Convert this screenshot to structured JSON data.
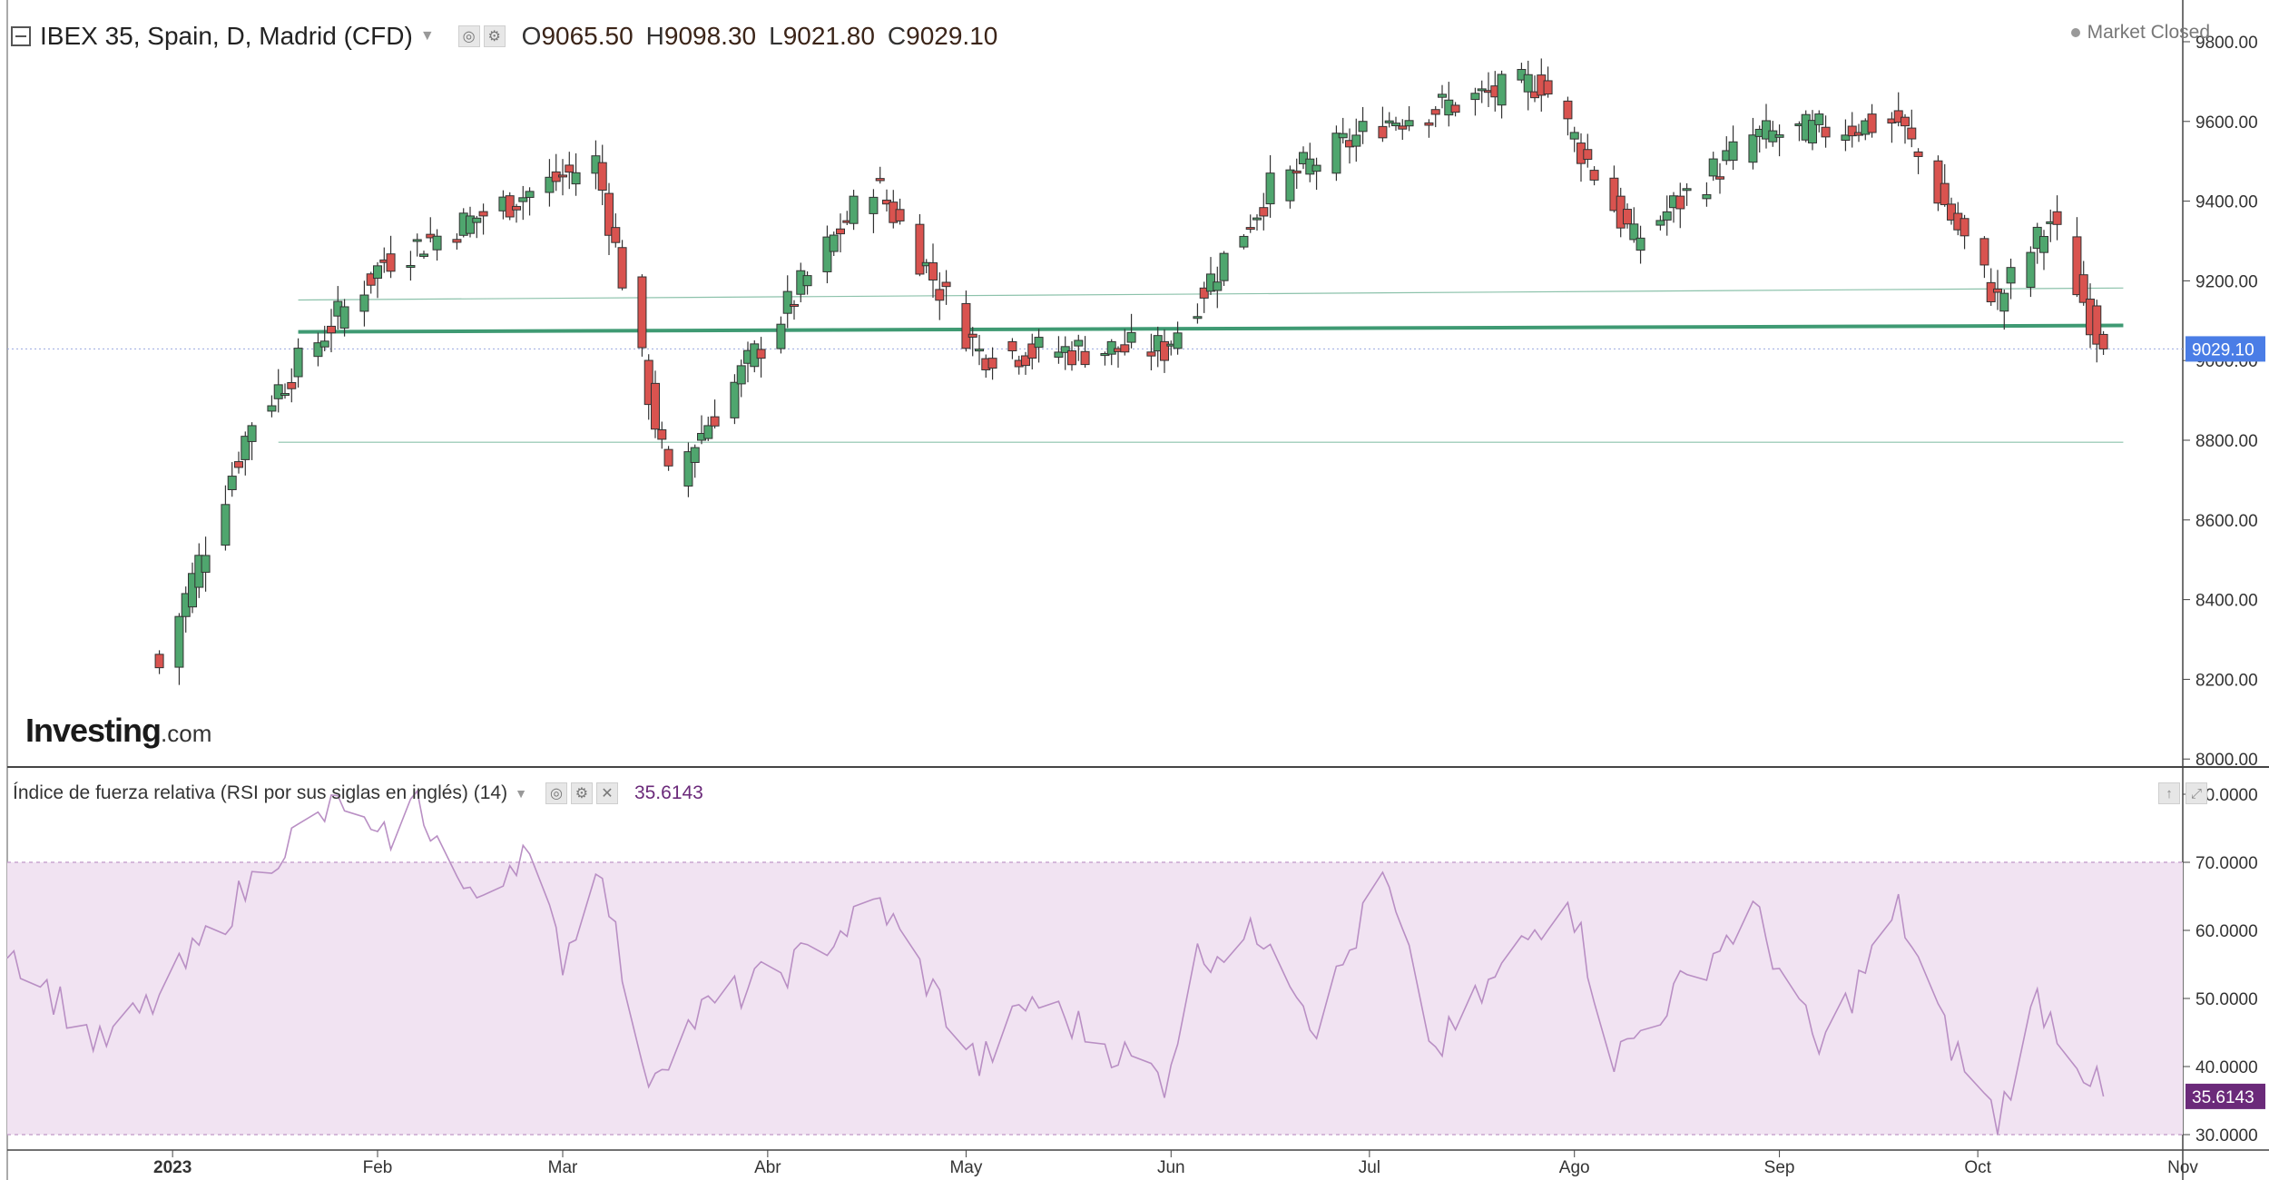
{
  "header": {
    "title": "IBEX 35, Spain, D, Madrid (CFD)",
    "ohlc": [
      {
        "key": "O",
        "value": "9065.50"
      },
      {
        "key": "H",
        "value": "9098.30"
      },
      {
        "key": "L",
        "value": "9021.80"
      },
      {
        "key": "C",
        "value": "9029.10"
      }
    ],
    "market_status": "Market Closed"
  },
  "rsi_header": {
    "title": "Índice de fuerza relativa (RSI por sus siglas en inglés) (14)",
    "value": "35.6143"
  },
  "logo": {
    "main": "Investing",
    "suffix": ".com"
  },
  "icons": {
    "collapse": "collapse-toggle-icon",
    "visibility": "eye-icon",
    "settings": "gear-icon",
    "close": "close-icon",
    "pane_up": "arrow-up-icon",
    "pane_maximize": "maximize-icon",
    "dropdown": "chevron-down-icon"
  },
  "chart_data": [
    {
      "type": "candlestick",
      "title": "IBEX 35, Spain, D, Madrid (CFD)",
      "x_axis": {
        "labels": [
          "2023",
          "Feb",
          "Mar",
          "Abr",
          "May",
          "Jun",
          "Jul",
          "Ago",
          "Sep",
          "Oct",
          "Nov"
        ],
        "dates": [
          "2023-01-01",
          "2023-02-01",
          "2023-03-01",
          "2023-04-01",
          "2023-05-01",
          "2023-06-01",
          "2023-07-01",
          "2023-08-01",
          "2023-09-01",
          "2023-10-01",
          "2023-11-01"
        ],
        "range": [
          "2022-12-07",
          "2023-11-01"
        ]
      },
      "y_axis": {
        "ticks": [
          "9800.00",
          "9600.00",
          "9400.00",
          "9200.00",
          "9000.00",
          "8800.00",
          "8600.00",
          "8400.00",
          "8200.00",
          "8000.00"
        ],
        "range": [
          7980,
          9825
        ]
      },
      "last_price": "9029.10",
      "colors": {
        "up": "#4fa66e",
        "down": "#d9534f",
        "last_price_tag": "#4a7de6",
        "horizontal_line": "#3f9a73"
      },
      "horizontal_lines": [
        {
          "from": "2023-01-20",
          "to": "2023-10-23",
          "y_start": 9152,
          "y_end": 9182,
          "weight": "thin"
        },
        {
          "from": "2023-01-20",
          "to": "2023-10-23",
          "y_start": 9072,
          "y_end": 9088,
          "weight": "thick"
        },
        {
          "from": "2023-01-17",
          "to": "2023-10-23",
          "y_start": 8795,
          "y_end": 8795,
          "weight": "thin"
        }
      ],
      "key_closes": [
        {
          "date": "2022-12-30",
          "close": 8230
        },
        {
          "date": "2023-01-13",
          "close": 8850
        },
        {
          "date": "2023-02-02",
          "close": 9250
        },
        {
          "date": "2023-03-06",
          "close": 9500
        },
        {
          "date": "2023-03-17",
          "close": 8700
        },
        {
          "date": "2023-04-17",
          "close": 9450
        },
        {
          "date": "2023-05-03",
          "close": 9020
        },
        {
          "date": "2023-05-31",
          "close": 9030
        },
        {
          "date": "2023-06-16",
          "close": 9430
        },
        {
          "date": "2023-07-03",
          "close": 9600
        },
        {
          "date": "2023-07-27",
          "close": 9700
        },
        {
          "date": "2023-08-10",
          "close": 9300
        },
        {
          "date": "2023-08-28",
          "close": 9560
        },
        {
          "date": "2023-09-19",
          "close": 9600
        },
        {
          "date": "2023-10-04",
          "close": 9150
        },
        {
          "date": "2023-10-12",
          "close": 9350
        },
        {
          "date": "2023-10-20",
          "close": 9029.1
        }
      ]
    },
    {
      "type": "line",
      "title": "Índice de fuerza relativa (RSI por sus siglas en inglés) (14)",
      "y_axis": {
        "ticks": [
          "80.0000",
          "70.0000",
          "60.0000",
          "50.0000",
          "40.0000",
          "30.0000"
        ],
        "range": [
          28,
          82
        ]
      },
      "band": {
        "upper": 70,
        "lower": 30,
        "color": "#f1e3f2"
      },
      "line_color": "#b98fc4",
      "last_value": "35.6143",
      "tag_color": "#6b2a7a",
      "key_values": [
        {
          "date": "2022-12-07",
          "value": 58
        },
        {
          "date": "2022-12-21",
          "value": 43
        },
        {
          "date": "2022-12-30",
          "value": 50
        },
        {
          "date": "2023-01-17",
          "value": 72
        },
        {
          "date": "2023-01-27",
          "value": 79
        },
        {
          "date": "2023-02-01",
          "value": 72
        },
        {
          "date": "2023-02-07",
          "value": 79
        },
        {
          "date": "2023-02-15",
          "value": 64
        },
        {
          "date": "2023-02-23",
          "value": 72
        },
        {
          "date": "2023-03-01",
          "value": 56
        },
        {
          "date": "2023-03-07",
          "value": 70
        },
        {
          "date": "2023-03-13",
          "value": 38
        },
        {
          "date": "2023-03-22",
          "value": 48
        },
        {
          "date": "2023-04-05",
          "value": 55
        },
        {
          "date": "2023-04-18",
          "value": 64
        },
        {
          "date": "2023-05-03",
          "value": 40
        },
        {
          "date": "2023-05-11",
          "value": 50
        },
        {
          "date": "2023-05-31",
          "value": 38
        },
        {
          "date": "2023-06-05",
          "value": 56
        },
        {
          "date": "2023-06-16",
          "value": 60
        },
        {
          "date": "2023-06-23",
          "value": 46
        },
        {
          "date": "2023-07-03",
          "value": 68
        },
        {
          "date": "2023-07-11",
          "value": 42
        },
        {
          "date": "2023-07-31",
          "value": 66
        },
        {
          "date": "2023-08-07",
          "value": 41
        },
        {
          "date": "2023-08-28",
          "value": 63
        },
        {
          "date": "2023-09-07",
          "value": 42
        },
        {
          "date": "2023-09-19",
          "value": 63
        },
        {
          "date": "2023-09-26",
          "value": 45
        },
        {
          "date": "2023-10-04",
          "value": 32
        },
        {
          "date": "2023-10-10",
          "value": 50
        },
        {
          "date": "2023-10-20",
          "value": 35.6143
        }
      ]
    }
  ]
}
